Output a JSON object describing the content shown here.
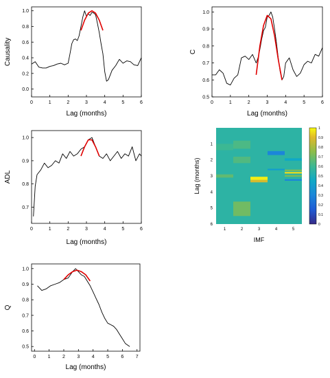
{
  "chart_data": [
    {
      "type": "line",
      "ylabel": "Causality",
      "xlabel": "Lag (months)",
      "xlim": [
        0,
        6
      ],
      "ylim": [
        -0.1,
        1.05
      ],
      "xticks": [
        0,
        1,
        2,
        3,
        4,
        5,
        6
      ],
      "yticks": [
        0.0,
        0.2,
        0.4,
        0.6,
        0.8,
        1.0
      ],
      "ytick_labels": [
        "0.0",
        "0.2",
        "0.4",
        "0.6",
        "0.8",
        "1.0"
      ],
      "series": [
        {
          "color": "#000000",
          "x": [
            0,
            0.2,
            0.4,
            0.6,
            0.8,
            1.0,
            1.2,
            1.4,
            1.6,
            1.8,
            2.0,
            2.1,
            2.2,
            2.3,
            2.4,
            2.5,
            2.6,
            2.7,
            2.8,
            2.9,
            3.0,
            3.1,
            3.2,
            3.3,
            3.4,
            3.5,
            3.6,
            3.7,
            3.8,
            3.9,
            4.0,
            4.1,
            4.2,
            4.3,
            4.4,
            4.6,
            4.8,
            5.0,
            5.2,
            5.4,
            5.6,
            5.8,
            6.0
          ],
          "y": [
            0.32,
            0.35,
            0.28,
            0.27,
            0.27,
            0.29,
            0.3,
            0.32,
            0.33,
            0.31,
            0.33,
            0.45,
            0.58,
            0.63,
            0.64,
            0.62,
            0.68,
            0.8,
            0.92,
            1.0,
            0.93,
            0.96,
            0.94,
            0.98,
            0.97,
            0.95,
            0.84,
            0.72,
            0.58,
            0.45,
            0.22,
            0.1,
            0.12,
            0.18,
            0.24,
            0.3,
            0.38,
            0.33,
            0.36,
            0.35,
            0.31,
            0.3,
            0.4
          ]
        },
        {
          "color": "#e00000",
          "x": [
            2.7,
            2.9,
            3.1,
            3.3,
            3.5,
            3.7,
            3.9
          ],
          "y": [
            0.75,
            0.88,
            0.97,
            1.0,
            0.97,
            0.88,
            0.75
          ]
        }
      ]
    },
    {
      "type": "line",
      "ylabel": "C",
      "xlabel": "Lag (months)",
      "xlim": [
        0,
        6
      ],
      "ylim": [
        0.5,
        1.03
      ],
      "xticks": [
        0,
        1,
        2,
        3,
        4,
        5,
        6
      ],
      "yticks": [
        0.5,
        0.6,
        0.7,
        0.8,
        0.9,
        1.0
      ],
      "ytick_labels": [
        "0.5",
        "0.6",
        "0.7",
        "0.8",
        "0.9",
        "1.0"
      ],
      "series": [
        {
          "color": "#000000",
          "x": [
            0,
            0.2,
            0.4,
            0.6,
            0.8,
            1.0,
            1.2,
            1.4,
            1.6,
            1.8,
            2.0,
            2.2,
            2.4,
            2.5,
            2.6,
            2.7,
            2.8,
            2.9,
            3.0,
            3.1,
            3.2,
            3.3,
            3.4,
            3.5,
            3.6,
            3.7,
            3.8,
            3.9,
            4.0,
            4.2,
            4.4,
            4.6,
            4.8,
            5.0,
            5.2,
            5.4,
            5.6,
            5.8,
            6.0
          ],
          "y": [
            0.63,
            0.63,
            0.66,
            0.64,
            0.58,
            0.57,
            0.61,
            0.63,
            0.73,
            0.74,
            0.72,
            0.75,
            0.7,
            0.73,
            0.78,
            0.84,
            0.89,
            0.91,
            0.97,
            0.98,
            1.0,
            0.97,
            0.9,
            0.82,
            0.73,
            0.65,
            0.6,
            0.62,
            0.7,
            0.73,
            0.66,
            0.62,
            0.64,
            0.69,
            0.71,
            0.7,
            0.75,
            0.74,
            0.79
          ]
        },
        {
          "color": "#e00000",
          "x": [
            2.4,
            2.6,
            2.8,
            3.0,
            3.2,
            3.4,
            3.6,
            3.8
          ],
          "y": [
            0.63,
            0.8,
            0.92,
            0.98,
            0.96,
            0.86,
            0.72,
            0.6
          ]
        }
      ]
    },
    {
      "type": "line",
      "ylabel": "ADL",
      "xlabel": "Lag (months)",
      "xlim": [
        0,
        6
      ],
      "ylim": [
        0.63,
        1.03
      ],
      "xticks": [
        0,
        1,
        2,
        3,
        4,
        5,
        6
      ],
      "yticks": [
        0.7,
        0.8,
        0.9,
        1.0
      ],
      "ytick_labels": [
        "0.7",
        "0.8",
        "0.9",
        "1.0"
      ],
      "series": [
        {
          "color": "#000000",
          "x": [
            0.1,
            0.2,
            0.3,
            0.5,
            0.7,
            0.9,
            1.1,
            1.3,
            1.5,
            1.7,
            1.9,
            2.1,
            2.3,
            2.5,
            2.7,
            2.9,
            3.1,
            3.3,
            3.5,
            3.7,
            3.9,
            4.1,
            4.3,
            4.5,
            4.7,
            4.9,
            5.1,
            5.3,
            5.5,
            5.7,
            5.9,
            6.0
          ],
          "y": [
            0.66,
            0.79,
            0.84,
            0.86,
            0.89,
            0.87,
            0.88,
            0.9,
            0.89,
            0.93,
            0.91,
            0.94,
            0.92,
            0.93,
            0.95,
            0.96,
            0.99,
            1.0,
            0.96,
            0.92,
            0.91,
            0.93,
            0.9,
            0.92,
            0.94,
            0.91,
            0.93,
            0.92,
            0.96,
            0.9,
            0.93,
            0.92
          ]
        },
        {
          "color": "#e00000",
          "x": [
            2.7,
            2.9,
            3.1,
            3.3,
            3.5,
            3.7
          ],
          "y": [
            0.92,
            0.96,
            0.99,
            0.99,
            0.96,
            0.92
          ]
        }
      ]
    },
    {
      "type": "heatmap",
      "ylabel": "Lag (months)",
      "xlabel": "IMF",
      "categories": [
        "1",
        "2",
        "3",
        "4",
        "5"
      ],
      "yticks": [
        1,
        2,
        3,
        4,
        5,
        6
      ],
      "ylim": [
        0,
        6
      ],
      "colorbar_ticks": [
        "0",
        "0.1",
        "0.2",
        "0.3",
        "0.4",
        "0.5",
        "0.6",
        "0.7",
        "0.8",
        "0.9",
        "1"
      ],
      "colorscale": "parula",
      "base_value": 0.55,
      "bands": [
        {
          "imf": 1,
          "lag": [
            2.9,
            3.1
          ],
          "value": 0.67
        },
        {
          "imf": 1,
          "lag": [
            1.0,
            1.4
          ],
          "value": 0.6
        },
        {
          "imf": 2,
          "lag": [
            0.8,
            1.3
          ],
          "value": 0.63
        },
        {
          "imf": 2,
          "lag": [
            1.8,
            2.2
          ],
          "value": 0.64
        },
        {
          "imf": 2,
          "lag": [
            4.6,
            5.5
          ],
          "value": 0.7
        },
        {
          "imf": 3,
          "lag": [
            3.05,
            3.25
          ],
          "value": 0.98
        },
        {
          "imf": 3,
          "lag": [
            3.25,
            3.4
          ],
          "value": 0.88
        },
        {
          "imf": 4,
          "lag": [
            1.45,
            1.7
          ],
          "value": 0.3
        },
        {
          "imf": 4,
          "lag": [
            2.55,
            2.65
          ],
          "value": 0.4
        },
        {
          "imf": 5,
          "lag": [
            1.9,
            2.05
          ],
          "value": 0.45
        },
        {
          "imf": 5,
          "lag": [
            2.6,
            2.7
          ],
          "value": 0.72
        },
        {
          "imf": 5,
          "lag": [
            2.75,
            2.85
          ],
          "value": 0.95
        },
        {
          "imf": 5,
          "lag": [
            2.95,
            3.05
          ],
          "value": 0.72
        },
        {
          "imf": 5,
          "lag": [
            3.2,
            3.3
          ],
          "value": 0.3
        }
      ]
    },
    {
      "type": "line",
      "ylabel": "Q",
      "xlabel": "Lag (months)",
      "xlim": [
        -0.2,
        7.2
      ],
      "ylim": [
        0.47,
        1.03
      ],
      "xticks": [
        0,
        1,
        2,
        3,
        4,
        5,
        6,
        7
      ],
      "yticks": [
        0.5,
        0.6,
        0.7,
        0.8,
        0.9,
        1.0
      ],
      "ytick_labels": [
        "0.5",
        "0.6",
        "0.7",
        "0.8",
        "0.9",
        "1.0"
      ],
      "series": [
        {
          "color": "#000000",
          "x": [
            0.2,
            0.5,
            0.8,
            1.1,
            1.4,
            1.7,
            2.0,
            2.3,
            2.6,
            2.8,
            3.0,
            3.2,
            3.4,
            3.6,
            3.8,
            4.0,
            4.2,
            4.4,
            4.6,
            4.8,
            5.0,
            5.2,
            5.4,
            5.6,
            5.8,
            6.0,
            6.2,
            6.5
          ],
          "y": [
            0.89,
            0.86,
            0.87,
            0.89,
            0.9,
            0.91,
            0.93,
            0.94,
            0.98,
            1.0,
            0.98,
            0.96,
            0.95,
            0.92,
            0.89,
            0.85,
            0.81,
            0.77,
            0.72,
            0.68,
            0.65,
            0.64,
            0.63,
            0.61,
            0.58,
            0.55,
            0.52,
            0.5
          ]
        },
        {
          "color": "#e00000",
          "x": [
            2.0,
            2.3,
            2.6,
            2.9,
            3.2,
            3.5,
            3.8
          ],
          "y": [
            0.93,
            0.96,
            0.98,
            0.99,
            0.98,
            0.96,
            0.92
          ]
        }
      ]
    }
  ]
}
